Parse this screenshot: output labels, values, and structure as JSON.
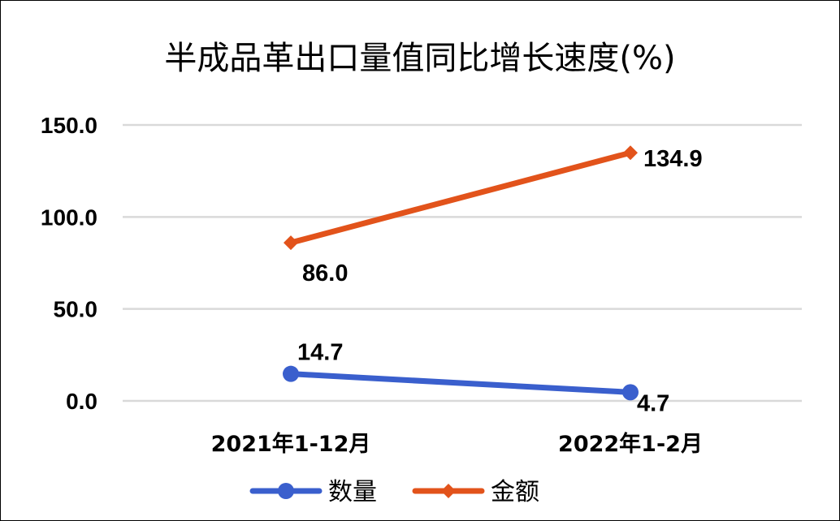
{
  "chart_data": {
    "type": "line",
    "title": "半成品革出口量值同比增长速度(%)",
    "categories": [
      "2021年1-12月",
      "2022年1-2月"
    ],
    "series": [
      {
        "name": "数量",
        "values": [
          14.7,
          4.7
        ],
        "labels": [
          "14.7",
          "4.7"
        ],
        "color": "#3a5fcd",
        "marker": "circle"
      },
      {
        "name": "金额",
        "values": [
          86.0,
          134.9
        ],
        "labels": [
          "86.0",
          "134.9"
        ],
        "color": "#e2531b",
        "marker": "diamond"
      }
    ],
    "y_ticks": [
      0,
      50,
      100,
      150
    ],
    "y_tick_labels": [
      "0.0",
      "50.0",
      "100.0",
      "150.0"
    ],
    "ylim": [
      0,
      150
    ],
    "grid": true,
    "legend_position": "bottom"
  }
}
